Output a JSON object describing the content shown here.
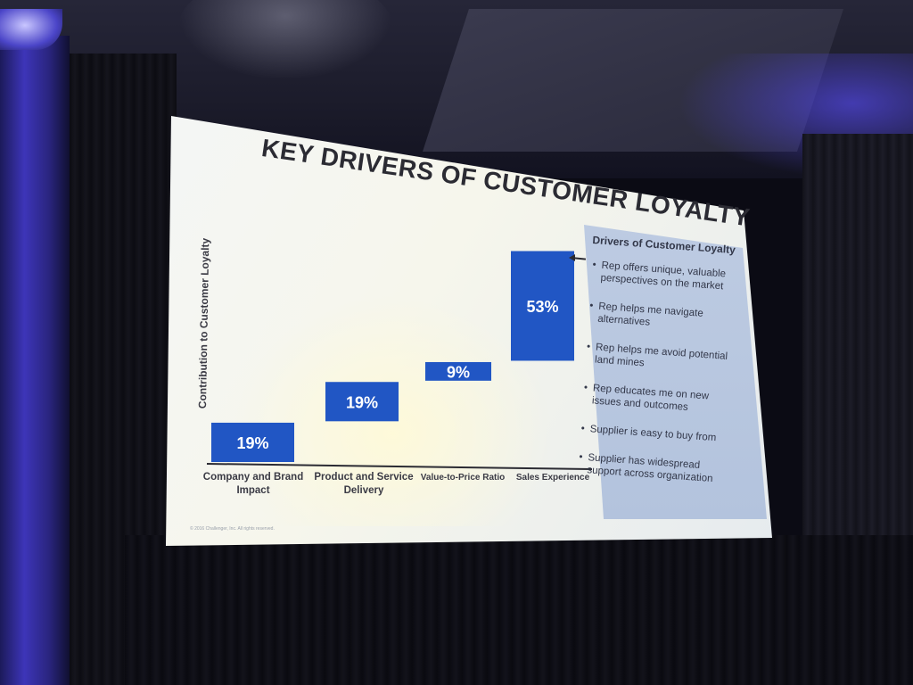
{
  "slide": {
    "title": "KEY DRIVERS OF CUSTOMER LOYALTY",
    "copyright": "© 2016 Challenger, Inc.  All rights reserved."
  },
  "callout": {
    "title": "Drivers of Customer Loyalty",
    "items": [
      "Rep offers unique, valuable perspectives on the market",
      "Rep helps me navigate alternatives",
      "Rep helps me avoid potential land mines",
      "Rep educates me on new issues and outcomes",
      "Supplier is easy to buy from",
      "Supplier has widespread support across organization"
    ]
  },
  "colors": {
    "bar": "#2156c4",
    "bar_text": "#ffffff",
    "axis": "#2b2b33",
    "label": "#3b3b45",
    "callout_bg": "#b8c6de"
  },
  "chart_data": {
    "type": "bar",
    "variant": "waterfall",
    "title": "KEY DRIVERS OF CUSTOMER LOYALTY",
    "xlabel": "",
    "ylabel": "Contribution to Customer Loyalty",
    "categories": [
      "Company and Brand Impact",
      "Product and Service Delivery",
      "Value-to-Price Ratio",
      "Sales Experience"
    ],
    "category_label_lines": [
      [
        "Company and Brand",
        "Impact"
      ],
      [
        "Product and Service",
        "Delivery"
      ],
      [
        "Value-to-Price Ratio"
      ],
      [
        "Sales Experience"
      ]
    ],
    "values": [
      19,
      19,
      9,
      53
    ],
    "data_labels": [
      "19%",
      "19%",
      "9%",
      "53%"
    ],
    "unit": "%",
    "ylim": [
      0,
      100
    ],
    "grid": false,
    "legend": "none"
  }
}
